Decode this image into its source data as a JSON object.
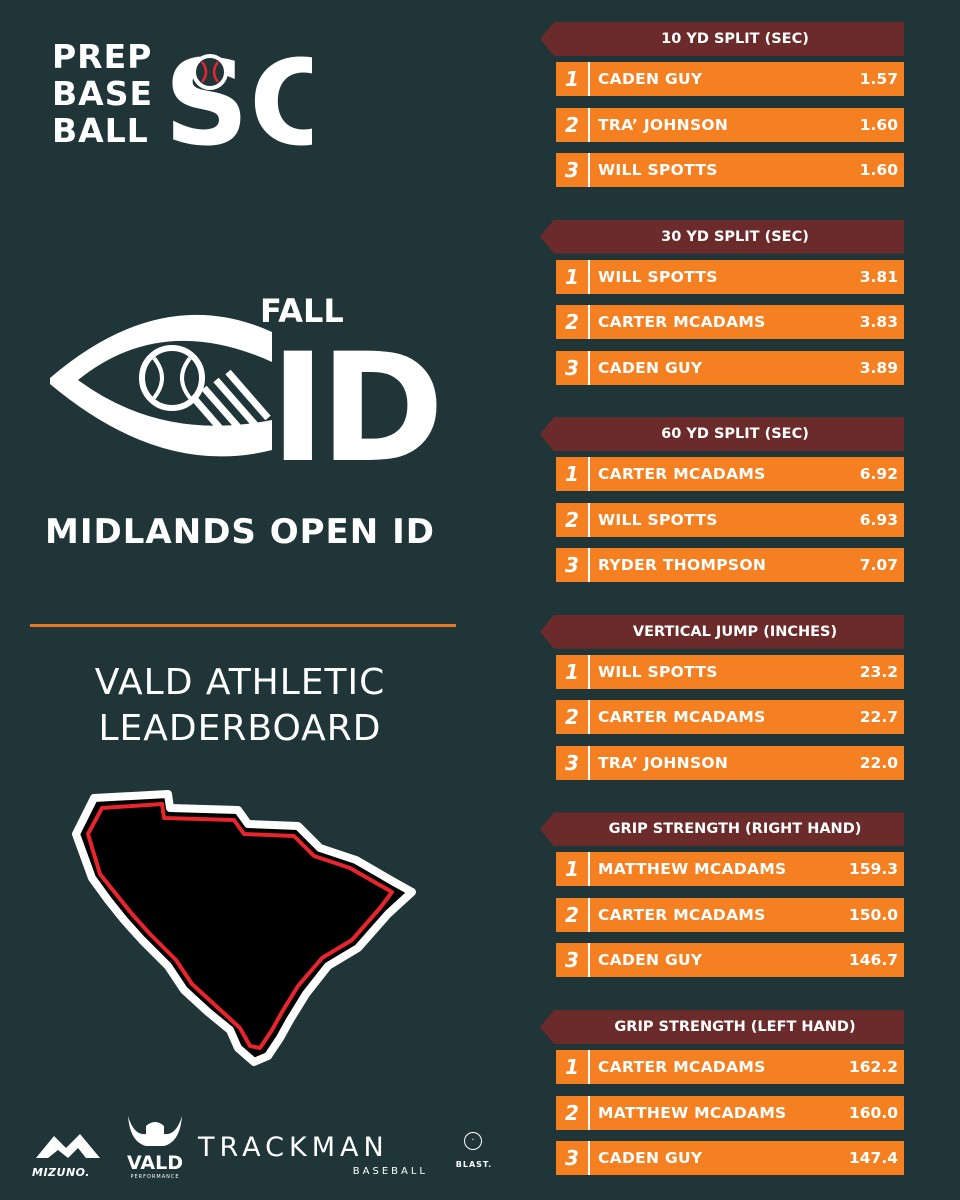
{
  "logo": {
    "words": [
      "PREP",
      "BASE",
      "BALL"
    ],
    "letters": "SC"
  },
  "fall_id": {
    "label_top": "FALL",
    "label_main": "ID"
  },
  "event_title": "MIDLANDS OPEN ID",
  "subtitle": [
    "VALD ATHLETIC",
    "LEADERBOARD"
  ],
  "colors": {
    "background": "#1f3538",
    "accent_orange": "#f58022",
    "header_maroon": "#6b2b2b",
    "map_red": "#e8242c"
  },
  "sponsors": {
    "mizuno": "MIZUNO.",
    "vald": "VALD",
    "vald_sub": "PERFORMANCE",
    "trackman": "TRACKMAN",
    "trackman_sub": "BASEBALL",
    "blast": "BLAST."
  },
  "leaderboard": [
    {
      "title": "10 YD SPLIT (SEC)",
      "entries": [
        {
          "rank": "1",
          "name": "CADEN GUY",
          "value": "1.57"
        },
        {
          "rank": "2",
          "name": "TRA’ JOHNSON",
          "value": "1.60"
        },
        {
          "rank": "3",
          "name": "WILL SPOTTS",
          "value": "1.60"
        }
      ]
    },
    {
      "title": "30 YD SPLIT (SEC)",
      "entries": [
        {
          "rank": "1",
          "name": "WILL SPOTTS",
          "value": "3.81"
        },
        {
          "rank": "2",
          "name": "CARTER MCADAMS",
          "value": "3.83"
        },
        {
          "rank": "3",
          "name": "CADEN GUY",
          "value": "3.89"
        }
      ]
    },
    {
      "title": "60 YD SPLIT (SEC)",
      "entries": [
        {
          "rank": "1",
          "name": "CARTER MCADAMS",
          "value": "6.92"
        },
        {
          "rank": "2",
          "name": "WILL SPOTTS",
          "value": "6.93"
        },
        {
          "rank": "3",
          "name": "RYDER THOMPSON",
          "value": "7.07"
        }
      ]
    },
    {
      "title": "VERTICAL JUMP (INCHES)",
      "entries": [
        {
          "rank": "1",
          "name": "WILL SPOTTS",
          "value": "23.2"
        },
        {
          "rank": "2",
          "name": "CARTER MCADAMS",
          "value": "22.7"
        },
        {
          "rank": "3",
          "name": "TRA’ JOHNSON",
          "value": "22.0"
        }
      ]
    },
    {
      "title": "GRIP STRENGTH (RIGHT HAND)",
      "entries": [
        {
          "rank": "1",
          "name": "MATTHEW MCADAMS",
          "value": "159.3"
        },
        {
          "rank": "2",
          "name": "CARTER MCADAMS",
          "value": "150.0"
        },
        {
          "rank": "3",
          "name": "CADEN GUY",
          "value": "146.7"
        }
      ]
    },
    {
      "title": "GRIP STRENGTH (LEFT HAND)",
      "entries": [
        {
          "rank": "1",
          "name": "CARTER MCADAMS",
          "value": "162.2"
        },
        {
          "rank": "2",
          "name": "MATTHEW MCADAMS",
          "value": "160.0"
        },
        {
          "rank": "3",
          "name": "CADEN GUY",
          "value": "147.4"
        }
      ]
    }
  ]
}
